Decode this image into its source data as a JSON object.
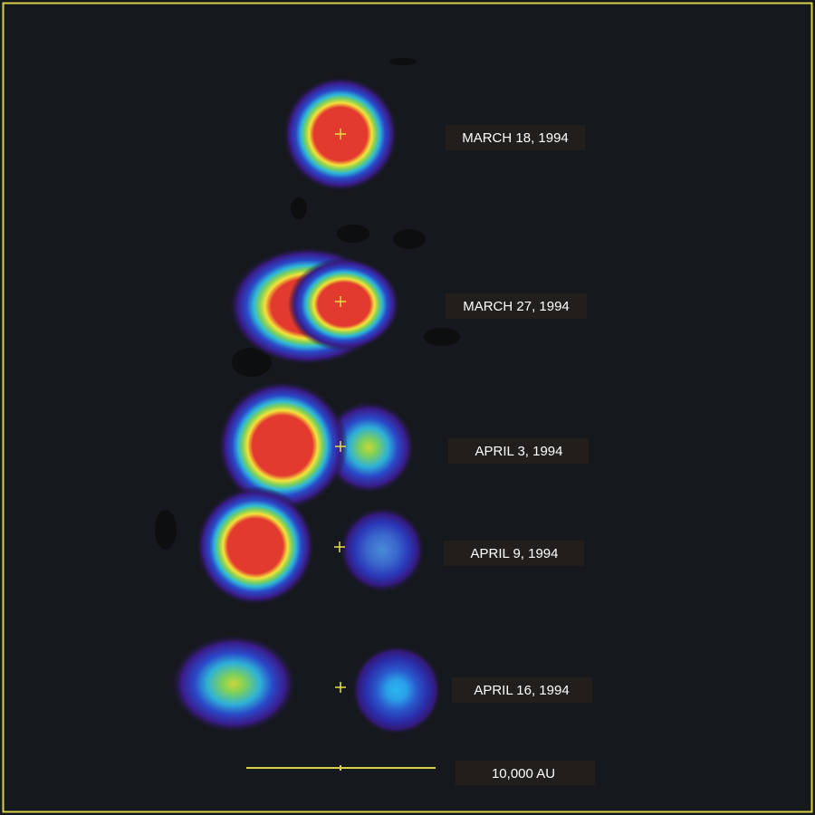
{
  "panels": [
    {
      "label": "MARCH 18, 1994"
    },
    {
      "label": "MARCH 27, 1994"
    },
    {
      "label": "APRIL 3, 1994"
    },
    {
      "label": "APRIL 9, 1994"
    },
    {
      "label": "APRIL 16, 1994"
    }
  ],
  "scale_bar": {
    "label": "10,000 AU"
  }
}
